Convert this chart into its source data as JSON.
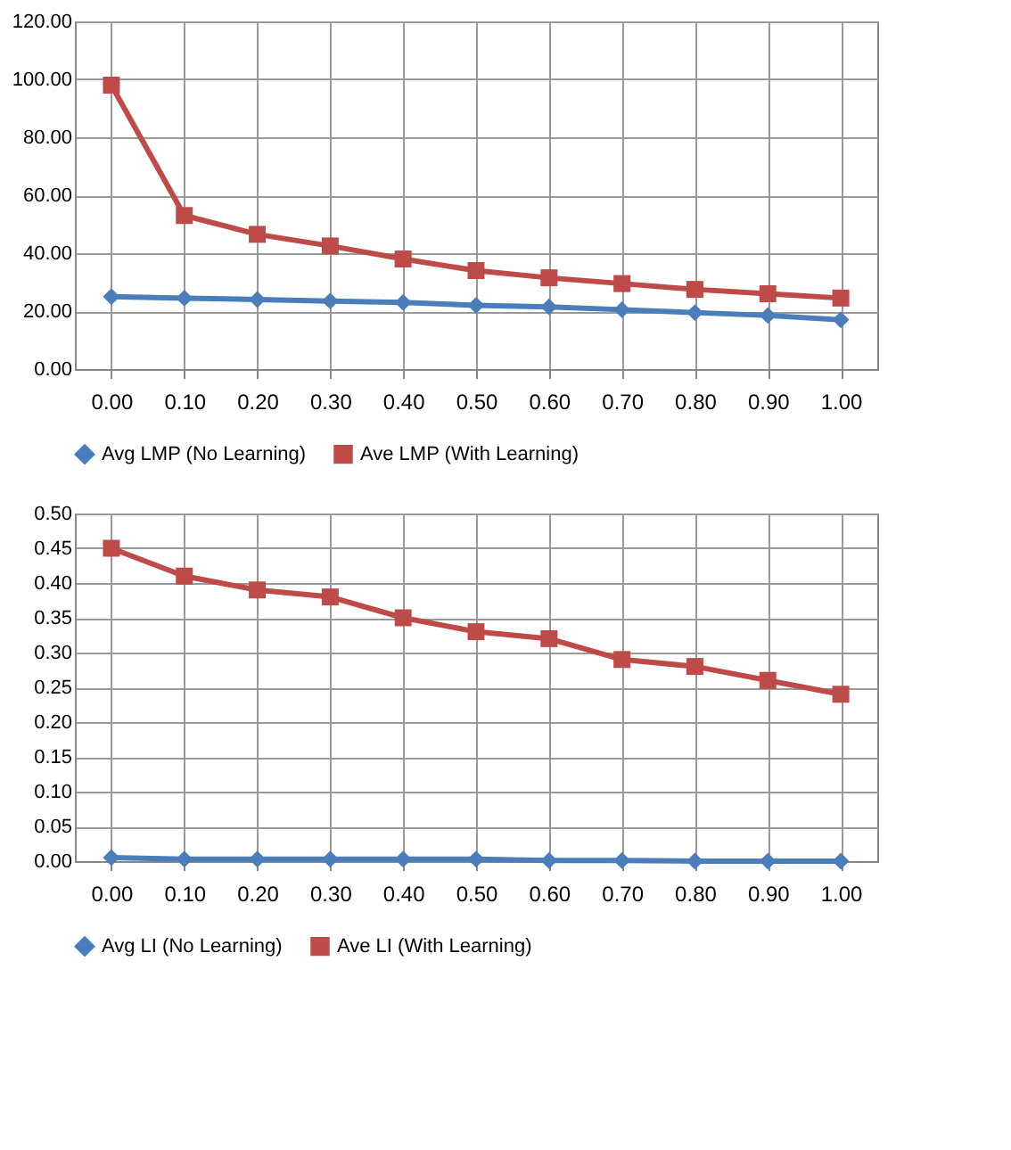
{
  "chart_data": [
    {
      "type": "line",
      "categories": [
        "0.00",
        "0.10",
        "0.20",
        "0.30",
        "0.40",
        "0.50",
        "0.60",
        "0.70",
        "0.80",
        "0.90",
        "1.00"
      ],
      "series": [
        {
          "name": "Avg LMP (No Learning)",
          "color": "#4a7ebb",
          "marker": "diamond",
          "values": [
            25,
            24.5,
            24,
            23.5,
            23,
            22,
            21.5,
            20.5,
            19.5,
            18.5,
            17
          ]
        },
        {
          "name": "Ave LMP (With Learning)",
          "color": "#be4b48",
          "marker": "square",
          "values": [
            98,
            53,
            46.5,
            42.5,
            38,
            34,
            31.5,
            29.5,
            27.5,
            26,
            24.5
          ]
        }
      ],
      "ylim": [
        0,
        120
      ],
      "yticks": [
        {
          "value": 0,
          "label": "0.00"
        },
        {
          "value": 20,
          "label": "20.00"
        },
        {
          "value": 40,
          "label": "40.00"
        },
        {
          "value": 60,
          "label": "60.00"
        },
        {
          "value": 80,
          "label": "80.00"
        },
        {
          "value": 100,
          "label": "100.00"
        },
        {
          "value": 120,
          "label": "120.00"
        }
      ],
      "grid": true,
      "legend": "bottom"
    },
    {
      "type": "line",
      "categories": [
        "0.00",
        "0.10",
        "0.20",
        "0.30",
        "0.40",
        "0.50",
        "0.60",
        "0.70",
        "0.80",
        "0.90",
        "1.00"
      ],
      "series": [
        {
          "name": "Avg LI (No Learning)",
          "color": "#4a7ebb",
          "marker": "diamond",
          "values": [
            0.005,
            0.003,
            0.003,
            0.003,
            0.003,
            0.003,
            0.001,
            0.001,
            0,
            0,
            0
          ]
        },
        {
          "name": "Ave LI (With Learning)",
          "color": "#be4b48",
          "marker": "square",
          "values": [
            0.45,
            0.41,
            0.39,
            0.38,
            0.35,
            0.33,
            0.32,
            0.29,
            0.28,
            0.26,
            0.24
          ]
        }
      ],
      "ylim": [
        0,
        0.5
      ],
      "yticks": [
        {
          "value": 0,
          "label": "0.00"
        },
        {
          "value": 0.05,
          "label": "0.05"
        },
        {
          "value": 0.1,
          "label": "0.10"
        },
        {
          "value": 0.15,
          "label": "0.15"
        },
        {
          "value": 0.2,
          "label": "0.20"
        },
        {
          "value": 0.25,
          "label": "0.25"
        },
        {
          "value": 0.3,
          "label": "0.30"
        },
        {
          "value": 0.35,
          "label": "0.35"
        },
        {
          "value": 0.4,
          "label": "0.40"
        },
        {
          "value": 0.45,
          "label": "0.45"
        },
        {
          "value": 0.5,
          "label": "0.50"
        }
      ],
      "grid": true,
      "legend": "bottom"
    }
  ]
}
